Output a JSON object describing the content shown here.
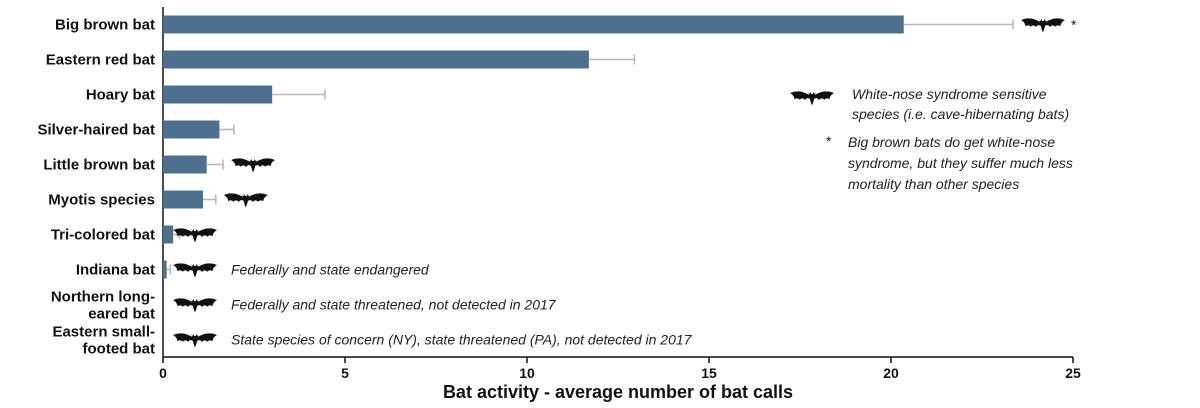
{
  "chart_data": {
    "type": "bar",
    "orientation": "horizontal",
    "categories": [
      "Big brown bat",
      "Eastern red bat",
      "Hoary bat",
      "Silver-haired bat",
      "Little brown bat",
      "Myotis species",
      "Tri-colored bat",
      "Indiana bat",
      "Northern long-eared bat",
      "Eastern small-footed bat"
    ],
    "category_lines": [
      [
        "Big brown bat"
      ],
      [
        "Eastern red bat"
      ],
      [
        "Hoary bat"
      ],
      [
        "Silver-haired bat"
      ],
      [
        "Little brown bat"
      ],
      [
        "Myotis species"
      ],
      [
        "Tri-colored bat"
      ],
      [
        "Indiana bat"
      ],
      [
        "Northern long-",
        "eared bat"
      ],
      [
        "Eastern small-",
        "footed bat"
      ]
    ],
    "values": [
      20.35,
      11.7,
      3.0,
      1.55,
      1.2,
      1.1,
      0.28,
      0.1,
      0,
      0
    ],
    "error_upper": [
      23.35,
      12.95,
      4.45,
      1.95,
      1.65,
      1.45,
      0.45,
      0.2,
      null,
      null
    ],
    "wns_sensitive": [
      true,
      false,
      false,
      false,
      true,
      true,
      true,
      true,
      true,
      true
    ],
    "annotations": {
      "0": "*",
      "7": "Federally and state endangered",
      "8": "Federally and state threatened, not detected in 2017",
      "9": "State species of concern (NY), state threatened (PA), not detected in 2017"
    },
    "xlabel": "Bat activity - average number of bat calls",
    "ylabel": "",
    "xlim": [
      0,
      25
    ],
    "xticks": [
      0,
      5,
      10,
      15,
      20,
      25
    ],
    "grid": false,
    "colors": {
      "bar": "#4e6f8e",
      "error": "#b8b8b8",
      "axis": "#111111",
      "bat_icon": "#111111"
    },
    "legend": {
      "placement": "right",
      "entries": [
        {
          "marker": "bat-icon",
          "text": [
            "White-nose syndrome sensitive",
            "species (i.e. cave-hibernating bats)"
          ]
        },
        {
          "marker": "*",
          "text": [
            "Big brown bats do get white-nose",
            "syndrome, but they suffer much less",
            "mortality than other species"
          ]
        }
      ]
    }
  }
}
